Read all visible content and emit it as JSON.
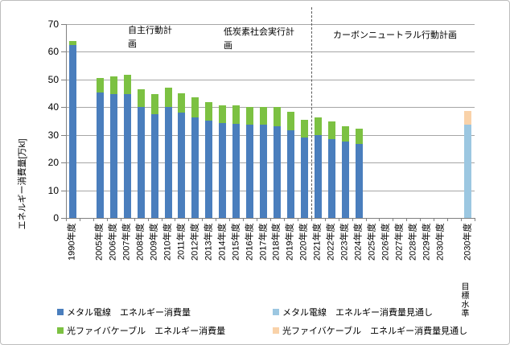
{
  "chart_data": {
    "type": "bar",
    "stacked": true,
    "title": "",
    "ylabel": "エネルギー消費量[万kl]",
    "ylim": [
      0,
      70
    ],
    "ytick_step": 10,
    "grid": true,
    "legend_position": "bottom",
    "categories": [
      "1990年度",
      "",
      "2005年度",
      "2006年度",
      "2007年度",
      "2008年度",
      "2009年度",
      "2010年度",
      "2011年度",
      "2012年度",
      "2013年度",
      "2014年度",
      "2015年度",
      "2016年度",
      "2017年度",
      "2018年度",
      "2019年度",
      "2020年度",
      "2021年度",
      "2022年度",
      "2023年度",
      "2024年度",
      "2025年度",
      "2026年度",
      "2027年度",
      "2028年度",
      "2029年度",
      "2030年度",
      "",
      "2030年度"
    ],
    "series": [
      {
        "name": "メタル電線　エネルギー消費量",
        "color": "#4a7ebd",
        "values": [
          62.5,
          null,
          45.3,
          44.7,
          44.7,
          40,
          37.6,
          40,
          38,
          36.3,
          35.1,
          34.3,
          34,
          33.7,
          33.7,
          33.2,
          31.8,
          29.1,
          29.8,
          28.6,
          27.6,
          26.8,
          null,
          null,
          null,
          null,
          null,
          null,
          null,
          null
        ]
      },
      {
        "name": "光ファイバケーブル　エネルギー消費量",
        "color": "#7cc142",
        "values": [
          1.5,
          null,
          5.2,
          6.3,
          7,
          6.6,
          7.2,
          7,
          7.1,
          7.2,
          6.6,
          6.5,
          6.6,
          6.4,
          6.4,
          6.9,
          6.5,
          6.3,
          6.4,
          6.2,
          5.4,
          5.5,
          null,
          null,
          null,
          null,
          null,
          null,
          null,
          null
        ]
      },
      {
        "name": "メタル電線　エネルギー消費量見通し",
        "color": "#9cc7e1",
        "values": [
          null,
          null,
          null,
          null,
          null,
          null,
          null,
          null,
          null,
          null,
          null,
          null,
          null,
          null,
          null,
          null,
          null,
          null,
          null,
          null,
          null,
          null,
          null,
          null,
          null,
          null,
          null,
          null,
          null,
          33.8
        ]
      },
      {
        "name": "光ファイバケーブル　エネルギー消費量見通し",
        "color": "#f9d2a9",
        "values": [
          null,
          null,
          null,
          null,
          null,
          null,
          null,
          null,
          null,
          null,
          null,
          null,
          null,
          null,
          null,
          null,
          null,
          null,
          null,
          null,
          null,
          null,
          null,
          null,
          null,
          null,
          null,
          null,
          null,
          4.8
        ]
      }
    ],
    "annotations": [
      "自主行動計画",
      "低炭素社会実行計画",
      "カーボンニュートラル行動計画"
    ],
    "divider_after_category": "2020年度",
    "x_note": "目標水準"
  }
}
